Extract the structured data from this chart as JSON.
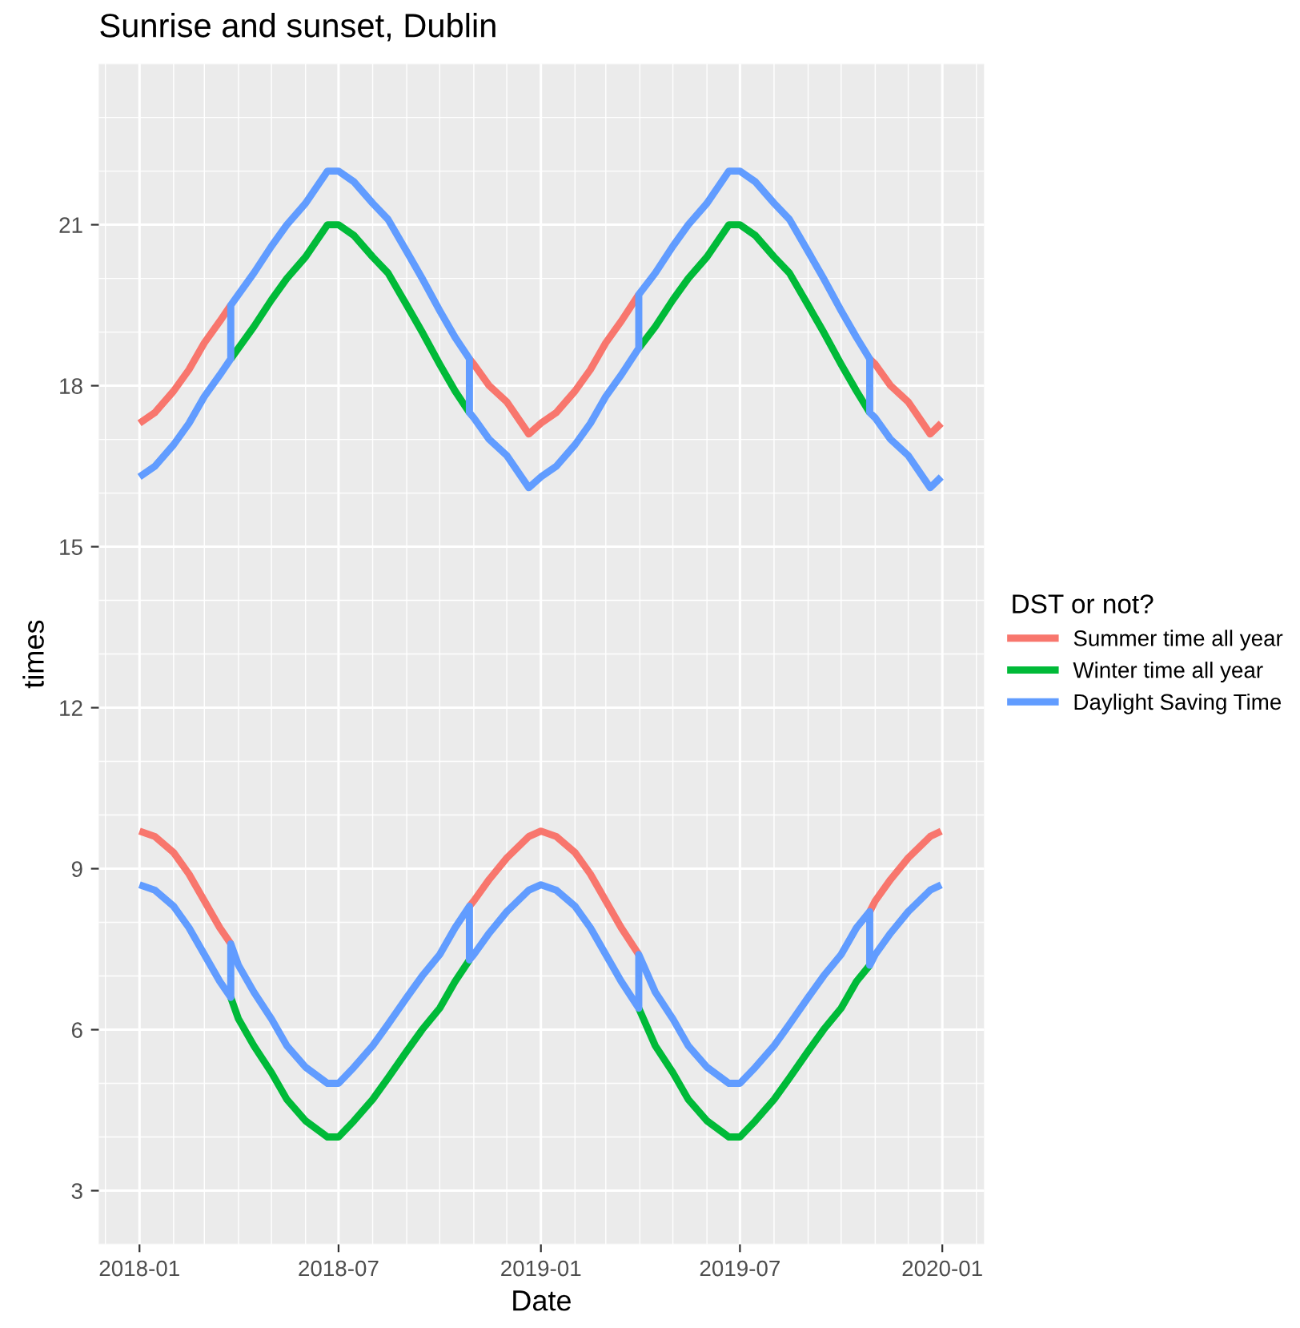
{
  "chart_data": {
    "type": "line",
    "title": "Sunrise and sunset, Dublin",
    "xlabel": "Date",
    "ylabel": "times",
    "legend_title": "DST or not?",
    "legend": "right",
    "grid": true,
    "line_style": "solid",
    "marker": "none",
    "x": [
      "2018-01-01",
      "2018-01-15",
      "2018-02-01",
      "2018-02-15",
      "2018-03-01",
      "2018-03-15",
      "2018-03-25",
      "2018-04-01",
      "2018-04-15",
      "2018-05-01",
      "2018-05-15",
      "2018-06-01",
      "2018-06-21",
      "2018-07-01",
      "2018-07-15",
      "2018-08-01",
      "2018-08-15",
      "2018-09-01",
      "2018-09-15",
      "2018-10-01",
      "2018-10-15",
      "2018-10-28",
      "2018-11-01",
      "2018-11-15",
      "2018-12-01",
      "2018-12-21",
      "2019-01-01",
      "2019-01-15",
      "2019-02-01",
      "2019-02-15",
      "2019-03-01",
      "2019-03-15",
      "2019-03-31",
      "2019-04-15",
      "2019-05-01",
      "2019-05-15",
      "2019-06-01",
      "2019-06-21",
      "2019-07-01",
      "2019-07-15",
      "2019-08-01",
      "2019-08-15",
      "2019-09-01",
      "2019-09-15",
      "2019-10-01",
      "2019-10-15",
      "2019-10-27",
      "2019-11-01",
      "2019-11-15",
      "2019-12-01",
      "2019-12-21",
      "2019-12-31"
    ],
    "xlim": [
      "2017-11-25",
      "2020-02-08"
    ],
    "xticks": [
      "2018-01",
      "2018-07",
      "2019-01",
      "2019-07",
      "2020-01"
    ],
    "ylim": [
      2.0,
      24.0
    ],
    "yticks": [
      3,
      6,
      9,
      12,
      15,
      18,
      21
    ],
    "series": [
      {
        "name": "Summer time all year",
        "color": "#f8766d",
        "values": [
          17.3,
          17.5,
          17.9,
          18.3,
          18.8,
          19.2,
          19.5,
          null,
          null,
          null,
          null,
          null,
          null,
          null,
          null,
          null,
          null,
          null,
          null,
          null,
          null,
          18.5,
          18.4,
          18.0,
          17.7,
          17.1,
          17.3,
          17.5,
          17.9,
          18.3,
          18.8,
          19.2,
          19.7,
          null,
          null,
          null,
          null,
          null,
          null,
          null,
          null,
          null,
          null,
          null,
          null,
          null,
          18.5,
          18.4,
          18.0,
          17.7,
          17.1,
          17.3
        ]
      },
      {
        "color": "#f8766d",
        "values": [
          9.7,
          9.6,
          9.3,
          8.9,
          8.4,
          7.9,
          7.6,
          null,
          null,
          null,
          null,
          null,
          null,
          null,
          null,
          null,
          null,
          null,
          null,
          null,
          null,
          8.3,
          8.4,
          8.8,
          9.2,
          9.6,
          9.7,
          9.6,
          9.3,
          8.9,
          8.4,
          7.9,
          7.4,
          null,
          null,
          null,
          null,
          null,
          null,
          null,
          null,
          null,
          null,
          null,
          null,
          null,
          8.2,
          8.4,
          8.8,
          9.2,
          9.6,
          9.7
        ]
      },
      {
        "name": "Winter time all year",
        "color": "#00ba38",
        "values": [
          null,
          null,
          null,
          null,
          null,
          null,
          18.5,
          18.7,
          19.1,
          19.6,
          20.0,
          20.4,
          21.0,
          21.0,
          20.8,
          20.4,
          20.1,
          19.5,
          19.0,
          18.4,
          17.9,
          17.5,
          null,
          null,
          null,
          null,
          null,
          null,
          null,
          null,
          null,
          null,
          18.7,
          19.1,
          19.6,
          20.0,
          20.4,
          21.0,
          21.0,
          20.8,
          20.4,
          20.1,
          19.5,
          19.0,
          18.4,
          17.9,
          17.5,
          null,
          null,
          null,
          null,
          null
        ]
      },
      {
        "color": "#00ba38",
        "values": [
          null,
          null,
          null,
          null,
          null,
          null,
          6.6,
          6.2,
          5.7,
          5.2,
          4.7,
          4.3,
          4.0,
          4.0,
          4.3,
          4.7,
          5.1,
          5.6,
          6.0,
          6.4,
          6.9,
          7.3,
          null,
          null,
          null,
          null,
          null,
          null,
          null,
          null,
          null,
          null,
          6.4,
          5.7,
          5.2,
          4.7,
          4.3,
          4.0,
          4.0,
          4.3,
          4.7,
          5.1,
          5.6,
          6.0,
          6.4,
          6.9,
          7.2,
          null,
          null,
          null,
          null,
          null
        ]
      },
      {
        "name": "Daylight Saving Time",
        "color": "#619cff",
        "x": [
          "2018-01-01",
          "2018-01-15",
          "2018-02-01",
          "2018-02-15",
          "2018-03-01",
          "2018-03-15",
          "2018-03-25",
          "2018-03-25",
          "2018-04-01",
          "2018-04-15",
          "2018-05-01",
          "2018-05-15",
          "2018-06-01",
          "2018-06-21",
          "2018-07-01",
          "2018-07-15",
          "2018-08-01",
          "2018-08-15",
          "2018-09-01",
          "2018-09-15",
          "2018-10-01",
          "2018-10-15",
          "2018-10-28",
          "2018-10-28",
          "2018-11-01",
          "2018-11-15",
          "2018-12-01",
          "2018-12-21",
          "2019-01-01",
          "2019-01-15",
          "2019-02-01",
          "2019-02-15",
          "2019-03-01",
          "2019-03-15",
          "2019-03-31",
          "2019-03-31",
          "2019-04-15",
          "2019-05-01",
          "2019-05-15",
          "2019-06-01",
          "2019-06-21",
          "2019-07-01",
          "2019-07-15",
          "2019-08-01",
          "2019-08-15",
          "2019-09-01",
          "2019-09-15",
          "2019-10-01",
          "2019-10-15",
          "2019-10-27",
          "2019-10-27",
          "2019-11-01",
          "2019-11-15",
          "2019-12-01",
          "2019-12-21",
          "2019-12-31"
        ],
        "values": [
          16.3,
          16.5,
          16.9,
          17.3,
          17.8,
          18.2,
          18.5,
          19.5,
          19.7,
          20.1,
          20.6,
          21.0,
          21.4,
          22.0,
          22.0,
          21.8,
          21.4,
          21.1,
          20.5,
          20.0,
          19.4,
          18.9,
          18.5,
          17.5,
          17.4,
          17.0,
          16.7,
          16.1,
          16.3,
          16.5,
          16.9,
          17.3,
          17.8,
          18.2,
          18.7,
          19.7,
          20.1,
          20.6,
          21.0,
          21.4,
          22.0,
          22.0,
          21.8,
          21.4,
          21.1,
          20.5,
          20.0,
          19.4,
          18.9,
          18.5,
          17.5,
          17.4,
          17.0,
          16.7,
          16.1,
          16.3
        ]
      },
      {
        "color": "#619cff",
        "x": [
          "2018-01-01",
          "2018-01-15",
          "2018-02-01",
          "2018-02-15",
          "2018-03-01",
          "2018-03-15",
          "2018-03-25",
          "2018-03-25",
          "2018-04-01",
          "2018-04-15",
          "2018-05-01",
          "2018-05-15",
          "2018-06-01",
          "2018-06-21",
          "2018-07-01",
          "2018-07-15",
          "2018-08-01",
          "2018-08-15",
          "2018-09-01",
          "2018-09-15",
          "2018-10-01",
          "2018-10-15",
          "2018-10-28",
          "2018-10-28",
          "2018-11-01",
          "2018-11-15",
          "2018-12-01",
          "2018-12-21",
          "2019-01-01",
          "2019-01-15",
          "2019-02-01",
          "2019-02-15",
          "2019-03-01",
          "2019-03-15",
          "2019-03-31",
          "2019-03-31",
          "2019-04-15",
          "2019-05-01",
          "2019-05-15",
          "2019-06-01",
          "2019-06-21",
          "2019-07-01",
          "2019-07-15",
          "2019-08-01",
          "2019-08-15",
          "2019-09-01",
          "2019-09-15",
          "2019-10-01",
          "2019-10-15",
          "2019-10-27",
          "2019-10-27",
          "2019-11-01",
          "2019-11-15",
          "2019-12-01",
          "2019-12-21",
          "2019-12-31"
        ],
        "values": [
          8.7,
          8.6,
          8.3,
          7.9,
          7.4,
          6.9,
          6.6,
          7.6,
          7.2,
          6.7,
          6.2,
          5.7,
          5.3,
          5.0,
          5.0,
          5.3,
          5.7,
          6.1,
          6.6,
          7.0,
          7.4,
          7.9,
          8.3,
          7.3,
          7.4,
          7.8,
          8.2,
          8.6,
          8.7,
          8.6,
          8.3,
          7.9,
          7.4,
          6.9,
          6.4,
          7.4,
          6.7,
          6.2,
          5.7,
          5.3,
          5.0,
          5.0,
          5.3,
          5.7,
          6.1,
          6.6,
          7.0,
          7.4,
          7.9,
          8.2,
          7.2,
          7.4,
          7.8,
          8.2,
          8.6,
          8.7
        ]
      }
    ]
  }
}
